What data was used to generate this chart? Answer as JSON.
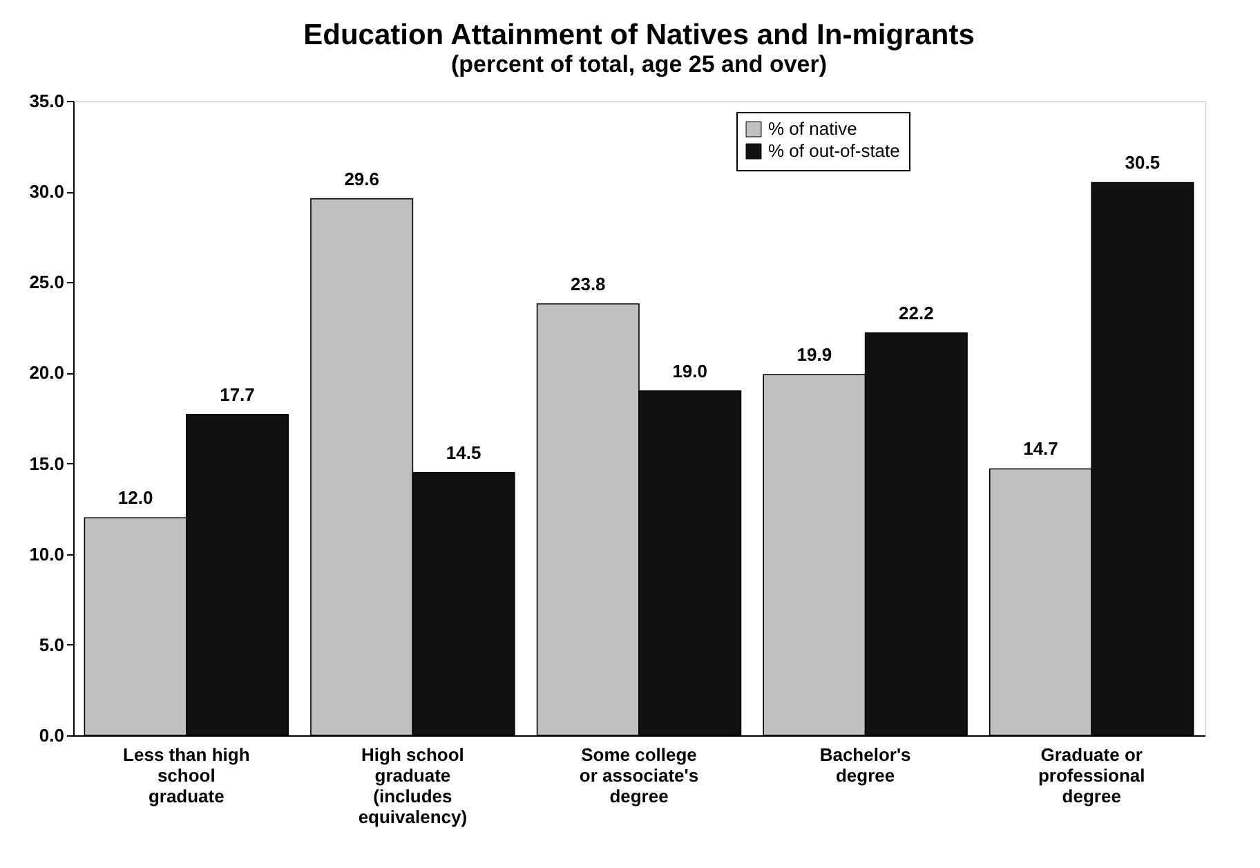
{
  "chart_data": {
    "type": "bar",
    "title": "Education Attainment of Natives and In-migrants",
    "subtitle": "(percent of total, age 25 and over)",
    "categories": [
      "Less than high school graduate",
      "High school graduate (includes equivalency)",
      "Some college or associate's degree",
      "Bachelor's degree",
      "Graduate or professional degree"
    ],
    "series": [
      {
        "name": "% of native",
        "color": "#c0c0c0",
        "values": [
          12.0,
          29.6,
          23.8,
          19.9,
          14.7
        ],
        "value_labels": [
          "12.0",
          "29.6",
          "23.8",
          "19.9",
          "14.7"
        ]
      },
      {
        "name": "% of out-of-state",
        "color": "#111111",
        "values": [
          17.7,
          14.5,
          19.0,
          22.2,
          30.5
        ],
        "value_labels": [
          "17.7",
          "14.5",
          "19.0",
          "22.2",
          "30.5"
        ]
      }
    ],
    "ylim": [
      0,
      35
    ],
    "yticks": [
      {
        "value": 0,
        "label": "0.0"
      },
      {
        "value": 5,
        "label": "5.0"
      },
      {
        "value": 10,
        "label": "10.0"
      },
      {
        "value": 15,
        "label": "15.0"
      },
      {
        "value": 20,
        "label": "20.0"
      },
      {
        "value": 25,
        "label": "25.0"
      },
      {
        "value": 30,
        "label": "30.0"
      },
      {
        "value": 35,
        "label": "35.0"
      }
    ],
    "legend": "top right",
    "grid": false
  }
}
